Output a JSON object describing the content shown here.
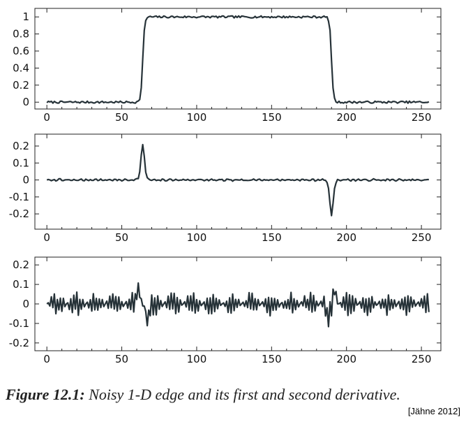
{
  "caption": {
    "label": "Figure 12.1:",
    "text": "Noisy 1-D edge and its first and second derivative.",
    "credit": "[Jähne 2012]"
  },
  "colors": {
    "line": "#263238",
    "frame": "#222222"
  },
  "chart_data": [
    {
      "type": "line",
      "x_range": [
        0,
        255
      ],
      "xlim": [
        -8,
        263
      ],
      "ylim": [
        -0.08,
        1.1
      ],
      "x_ticks": [
        0,
        50,
        100,
        150,
        200,
        250
      ],
      "x_tick_labels": [
        "0",
        "50",
        "100",
        "150",
        "200",
        "250"
      ],
      "y_ticks": [
        1,
        0.8,
        0.6,
        0.4,
        0.2,
        0
      ],
      "y_tick_labels": [
        "1",
        "0.8",
        "0.6",
        "0.4",
        "0.2",
        "0"
      ],
      "signal": "noisy step edge, 0 → 1 at x≈64, 1 → 0 at x≈191, noise amplitude ≈0.01",
      "key_points": [
        [
          0,
          0
        ],
        [
          55,
          0
        ],
        [
          60,
          0.03
        ],
        [
          64,
          0.5
        ],
        [
          67,
          1.0
        ],
        [
          100,
          1.0
        ],
        [
          150,
          1.0
        ],
        [
          186,
          1.0
        ],
        [
          190,
          0.5
        ],
        [
          194,
          0.02
        ],
        [
          255,
          0
        ]
      ]
    },
    {
      "type": "line",
      "x_range": [
        0,
        255
      ],
      "xlim": [
        -8,
        263
      ],
      "ylim": [
        -0.29,
        0.27
      ],
      "x_ticks": [
        0,
        50,
        100,
        150,
        200,
        250
      ],
      "x_tick_labels": [
        "0",
        "50",
        "100",
        "150",
        "200",
        "250"
      ],
      "y_ticks": [
        0.2,
        0.1,
        0,
        -0.1,
        -0.2
      ],
      "y_tick_labels": [
        "0.2",
        "0.1",
        "0",
        "-0.1",
        "-0.2"
      ],
      "signal": "first derivative, noise amplitude ≈0.005",
      "key_points": [
        [
          0,
          0
        ],
        [
          58,
          0
        ],
        [
          63,
          0.25
        ],
        [
          68,
          0
        ],
        [
          185,
          0
        ],
        [
          190,
          -0.27
        ],
        [
          195,
          0
        ],
        [
          255,
          0
        ]
      ]
    },
    {
      "type": "line",
      "x_range": [
        0,
        255
      ],
      "xlim": [
        -8,
        263
      ],
      "ylim": [
        -0.24,
        0.24
      ],
      "x_ticks": [
        0,
        50,
        100,
        150,
        200,
        250
      ],
      "x_tick_labels": [
        "0",
        "50",
        "100",
        "150",
        "200",
        "250"
      ],
      "y_ticks": [
        0.2,
        0.1,
        0,
        -0.1,
        -0.2
      ],
      "y_tick_labels": [
        "0.2",
        "0.1",
        "0",
        "-0.1",
        "-0.2"
      ],
      "signal": "second derivative, alternating noise amplitude ≈0.03",
      "key_points": [
        [
          0,
          0
        ],
        [
          61,
          0.12
        ],
        [
          65,
          0
        ],
        [
          67,
          -0.12
        ],
        [
          71,
          0
        ],
        [
          188,
          -0.12
        ],
        [
          190,
          0
        ],
        [
          192,
          0.1
        ],
        [
          255,
          0
        ]
      ]
    }
  ]
}
